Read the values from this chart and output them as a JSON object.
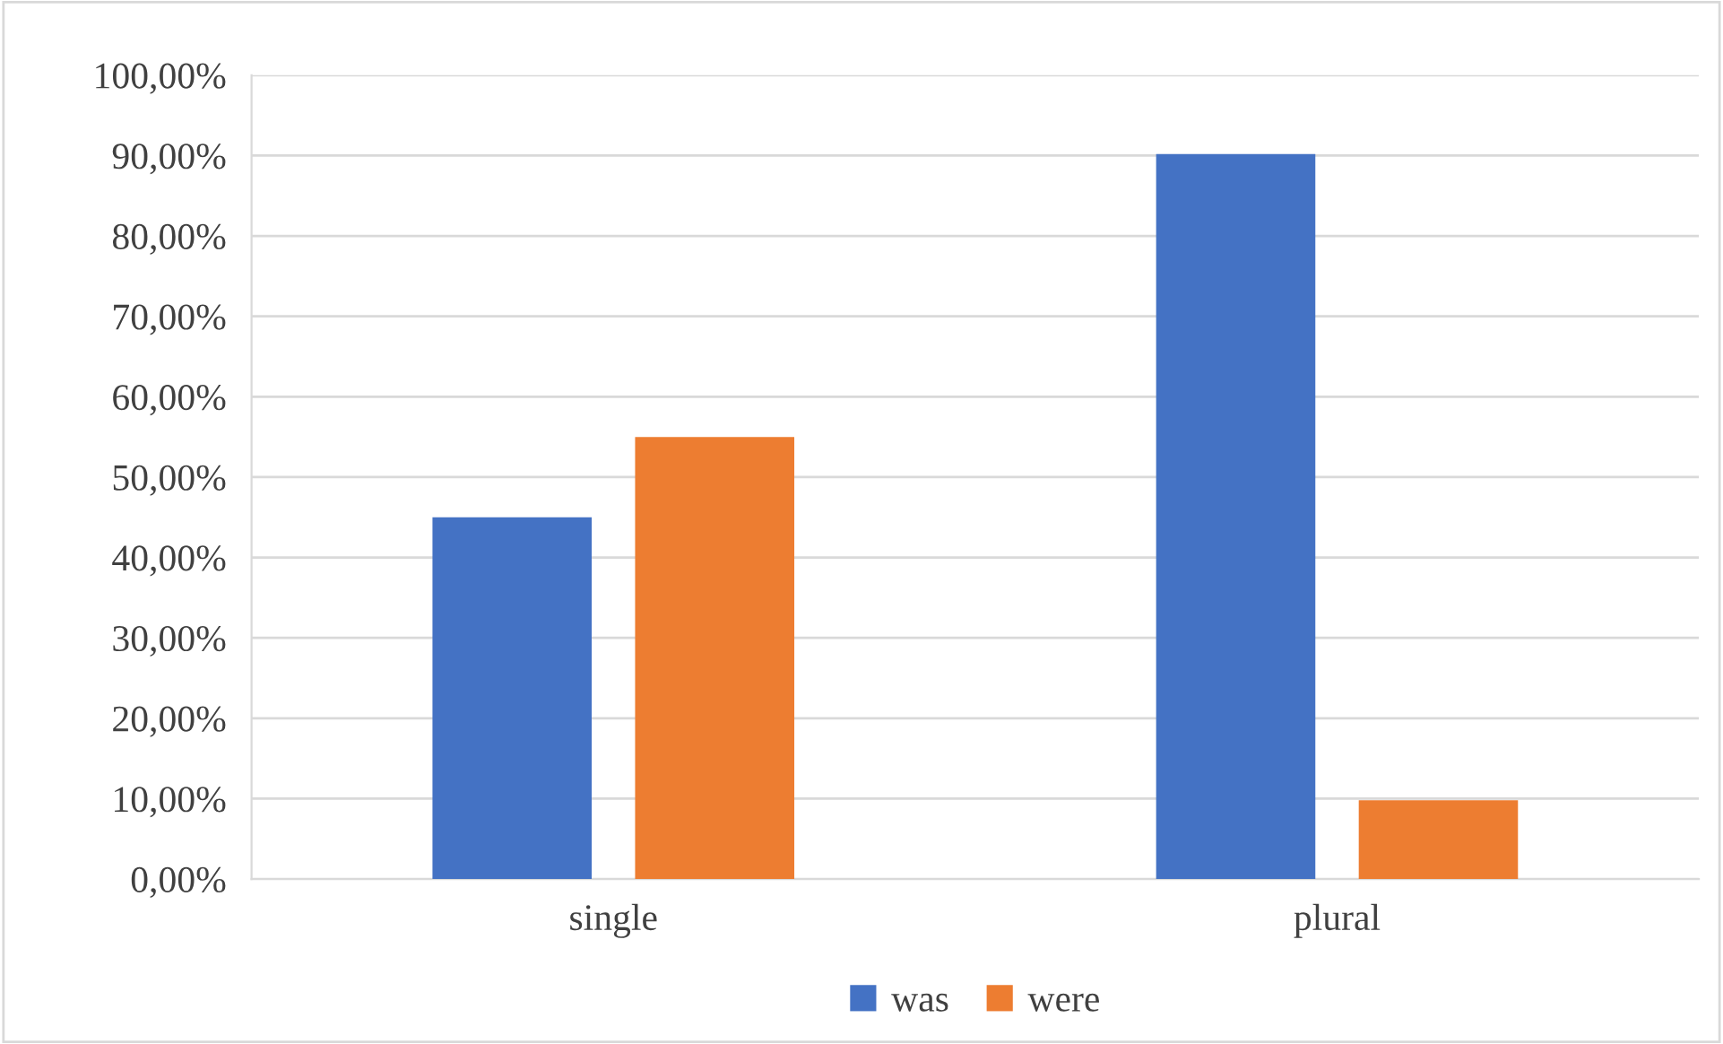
{
  "chart_data": {
    "type": "bar",
    "categories": [
      "single",
      "plural"
    ],
    "series": [
      {
        "name": "was",
        "color": "#4472c4",
        "values": [
          45.0,
          90.2
        ]
      },
      {
        "name": "were",
        "color": "#ed7d31",
        "values": [
          55.0,
          9.8
        ]
      }
    ],
    "ylim": [
      0,
      100
    ],
    "yticks": [
      {
        "value": 0,
        "label": "0,00%"
      },
      {
        "value": 10,
        "label": "10,00%"
      },
      {
        "value": 20,
        "label": "20,00%"
      },
      {
        "value": 30,
        "label": "30,00%"
      },
      {
        "value": 40,
        "label": "40,00%"
      },
      {
        "value": 50,
        "label": "50,00%"
      },
      {
        "value": 60,
        "label": "60,00%"
      },
      {
        "value": 70,
        "label": "70,00%"
      },
      {
        "value": 80,
        "label": "80,00%"
      },
      {
        "value": 90,
        "label": "90,00%"
      },
      {
        "value": 100,
        "label": "100,00%"
      }
    ],
    "grid": "y",
    "legend": "bottom"
  }
}
